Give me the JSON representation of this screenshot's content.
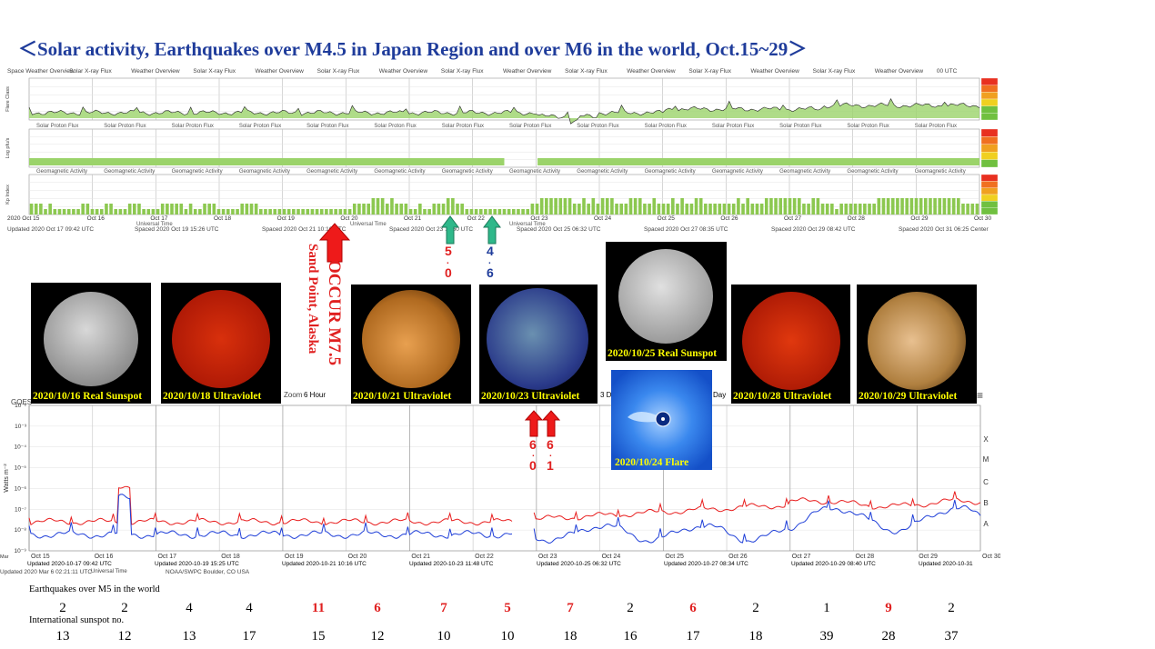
{
  "title": "＜Solar activity, Earthquakes over M4.5 in Japan Region and over M6 in the world,   Oct.15~29＞",
  "top_panel": {
    "section_labels": [
      "Space Weather Overview",
      "Solar X-ray Flux",
      "Weather Overview",
      "Solar X-ray Flux",
      "Weather Overview",
      "Solar X-ray Flux",
      "Weather Overview",
      "Solar X-ray Flux",
      "Weather Overview",
      "Solar X-ray Flux",
      "Weather Overview",
      "Solar X-ray Flux",
      "Weather Overview",
      "Solar X-ray Flux",
      "Weather Overview",
      "00 UTC"
    ],
    "proton_labels": [
      "Solar Proton Flux",
      "Solar Proton Flux",
      "Solar Proton Flux",
      "Solar Proton Flux",
      "Solar Proton Flux",
      "Solar Proton Flux",
      "Solar Proton Flux",
      "Solar Proton Flux",
      "Solar Proton Flux",
      "Solar Proton Flux",
      "Solar Proton Flux",
      "Solar Proton Flux",
      "Solar Proton Flux",
      "Solar Proton Flux"
    ],
    "geo_labels": [
      "Geomagnetic Activity",
      "Geomagnetic Activity",
      "Geomagnetic Activity",
      "Geomagnetic Activity",
      "Geomagnetic Activity",
      "Geomagnetic Activity",
      "Geomagnetic Activity",
      "Geomagnetic Activity",
      "Geomagnetic Activity",
      "Geomagnetic Activity",
      "Geomagnetic Activity",
      "Geomagnetic Activity",
      "Geomagnetic Activity",
      "Geomagnetic Activity"
    ],
    "ylabels": [
      "Flare Class",
      "Log pfu/s",
      "Kp Index"
    ],
    "date_ticks": [
      "2020 Oct 15",
      "Oct 16",
      "Oct 17",
      "Oct 18",
      "Oct 19",
      "Oct 20",
      "Oct 21",
      "Oct 22",
      "Oct 23",
      "Oct 24",
      "Oct 25",
      "Oct 26",
      "Oct 27",
      "Oct 28",
      "Oct 29",
      "Oct 30"
    ],
    "universal_time": "Universal Time",
    "updated_labels": [
      "Updated 2020 Oct 17 09:42 UTC",
      "Spaced 2020 Oct 19 15:26 UTC",
      "Spaced 2020 Oct 21 10:16 UTC",
      "Spaced 2020 Oct 23 11:50 UTC",
      "Spaced 2020 Oct 25 06:32 UTC",
      "Spaced 2020 Oct 27 08:35 UTC",
      "Spaced 2020 Oct 29 08:42 UTC",
      "Spaced 2020 Oct 31 06:25 Center"
    ],
    "kp_values": [
      2,
      2,
      2,
      1,
      2,
      1,
      1,
      1,
      1,
      1,
      1,
      2,
      2,
      1,
      1,
      1,
      2,
      2,
      1,
      1,
      1,
      2,
      2,
      2,
      1,
      1,
      1,
      1,
      2,
      2,
      2,
      2,
      2,
      1,
      2,
      1,
      1,
      2,
      2,
      2,
      1,
      1,
      1,
      1,
      1,
      2,
      2,
      2,
      2,
      1,
      1,
      1,
      1,
      1,
      1,
      1,
      1,
      1,
      1,
      1,
      1,
      1,
      1,
      1,
      1,
      1,
      1,
      1,
      1,
      2,
      2,
      2,
      2,
      3,
      3,
      3,
      2,
      3,
      2,
      2,
      2,
      1,
      1,
      2,
      1,
      1,
      2,
      2,
      2,
      3,
      3,
      2,
      2,
      1,
      1,
      1,
      1,
      1,
      1,
      1,
      1,
      1,
      1,
      1,
      1,
      1,
      1,
      2,
      2,
      3,
      3,
      3,
      3,
      3,
      3,
      3,
      2,
      2,
      3,
      2,
      3,
      2,
      3,
      3,
      3,
      2,
      2,
      2,
      3,
      3,
      3,
      2,
      2,
      3,
      2,
      2,
      2,
      3,
      2,
      3,
      2,
      2,
      3,
      3,
      2,
      2,
      2,
      2,
      2,
      2,
      2,
      3,
      2,
      3,
      2,
      2,
      2,
      3,
      3,
      3,
      3,
      3,
      3,
      3,
      3,
      2,
      2,
      3,
      3,
      2,
      2,
      2,
      1,
      2,
      2,
      2,
      2,
      2,
      2,
      2,
      2,
      3,
      3,
      3,
      3,
      3,
      3,
      3,
      3,
      3,
      3,
      3,
      3,
      3,
      3,
      3,
      3,
      3,
      3,
      2,
      2,
      2,
      2
    ]
  },
  "sun_images": [
    {
      "caption": "2020/10/16 Real Sunspot"
    },
    {
      "caption": "2020/10/18 Ultraviolet"
    },
    {
      "caption": "2020/10/21 Ultraviolet"
    },
    {
      "caption": "2020/10/23 Ultraviolet"
    },
    {
      "caption": "2020/10/25 Real Sunspot"
    },
    {
      "caption": "2020/10/28 Ultraviolet"
    },
    {
      "caption": "2020/10/29 Ultraviolet"
    },
    {
      "caption": "2020/10/24  Flare"
    }
  ],
  "annotations": {
    "occur_text": "OCCUR M7.5",
    "occur_location": "Sand Point, Alaska",
    "green_1": [
      "5",
      ".",
      "0"
    ],
    "green_2": [
      "4",
      ".",
      "6"
    ],
    "red_1": [
      "6",
      ".",
      "0"
    ],
    "red_2": [
      "6",
      ".",
      "1"
    ]
  },
  "goes_panel": {
    "header_left": "GOES",
    "zoom_label": "Zoom",
    "zoom_opt1": "6 Hour",
    "zoom_opt2": "3 D",
    "zoom_opt3": "Day",
    "ylabel": "Watts m⁻²",
    "ytick_labels": [
      "10⁻²",
      "10⁻³",
      "10⁻⁴",
      "10⁻⁵",
      "10⁻⁶",
      "10⁻⁷",
      "10⁻⁸",
      "10⁻⁹"
    ],
    "class_labels": [
      "X",
      "M",
      "C",
      "B",
      "A"
    ],
    "date_ticks": [
      "Oct 15",
      "Oct 16",
      "Oct 17",
      "Oct 18",
      "Oct 19",
      "Oct 20",
      "Oct 21",
      "Oct 22",
      "Oct 23",
      "Oct 24",
      "Oct 25",
      "Oct 26",
      "Oct 27",
      "Oct 28",
      "Oct 29",
      "Oct 30"
    ],
    "universal_time": "Universal Time",
    "updated_labels": [
      "Updated 2020-10-17 09:42 UTC",
      "Updated 2020-10-19 15:25 UTC",
      "Updated 2020-10-21 10:16 UTC",
      "Updated 2020-10-23 11:48 UTC",
      "Updated 2020-10-25 06:32 UTC",
      "Updated 2020-10-27 08:34 UTC",
      "Updated 2020-10-29 08:40 UTC",
      "Updated 2020-10-31"
    ],
    "footer_left": "Updated 2020 Mar  6 02:21:11 UTC",
    "footer_right": "NOAA/SWPC Boulder, CO USA",
    "mar_label": "Mar"
  },
  "chart_data": {
    "type": "table",
    "row_labels": [
      "Earthquakes over M5 in the world",
      "International sunspot no."
    ],
    "earthquakes": [
      2,
      2,
      4,
      4,
      11,
      6,
      7,
      5,
      7,
      2,
      6,
      2,
      1,
      9,
      2
    ],
    "earthquake_highlight": [
      false,
      false,
      false,
      false,
      true,
      true,
      true,
      true,
      true,
      false,
      true,
      false,
      false,
      true,
      false
    ],
    "sunspot": [
      13,
      12,
      13,
      17,
      15,
      12,
      10,
      10,
      18,
      16,
      17,
      18,
      39,
      28,
      37
    ],
    "colors": {
      "highlight": "#e02020",
      "normal": "#000000"
    }
  }
}
